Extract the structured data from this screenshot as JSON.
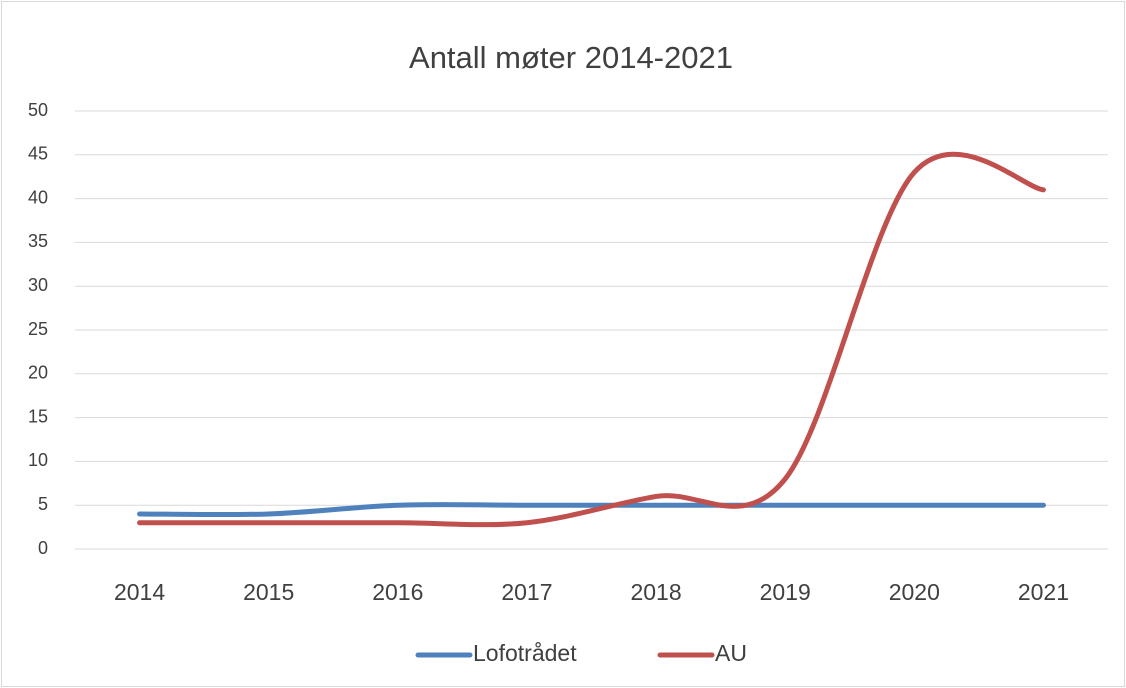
{
  "chart_data": {
    "type": "line",
    "title": "Antall møter 2014-2021",
    "categories": [
      "2014",
      "2015",
      "2016",
      "2017",
      "2018",
      "2019",
      "2020",
      "2021"
    ],
    "series": [
      {
        "name": "Lofotrådet",
        "color": "#4f81bd",
        "values": [
          4,
          4,
          5,
          5,
          5,
          5,
          5,
          5
        ]
      },
      {
        "name": "AU",
        "color": "#c0504d",
        "values": [
          3,
          3,
          3,
          3,
          6,
          8,
          43,
          41
        ]
      }
    ],
    "ylim": [
      0,
      50
    ],
    "yticks": [
      0,
      5,
      10,
      15,
      20,
      25,
      30,
      35,
      40,
      45,
      50
    ],
    "grid": true,
    "legend": "bottom"
  }
}
